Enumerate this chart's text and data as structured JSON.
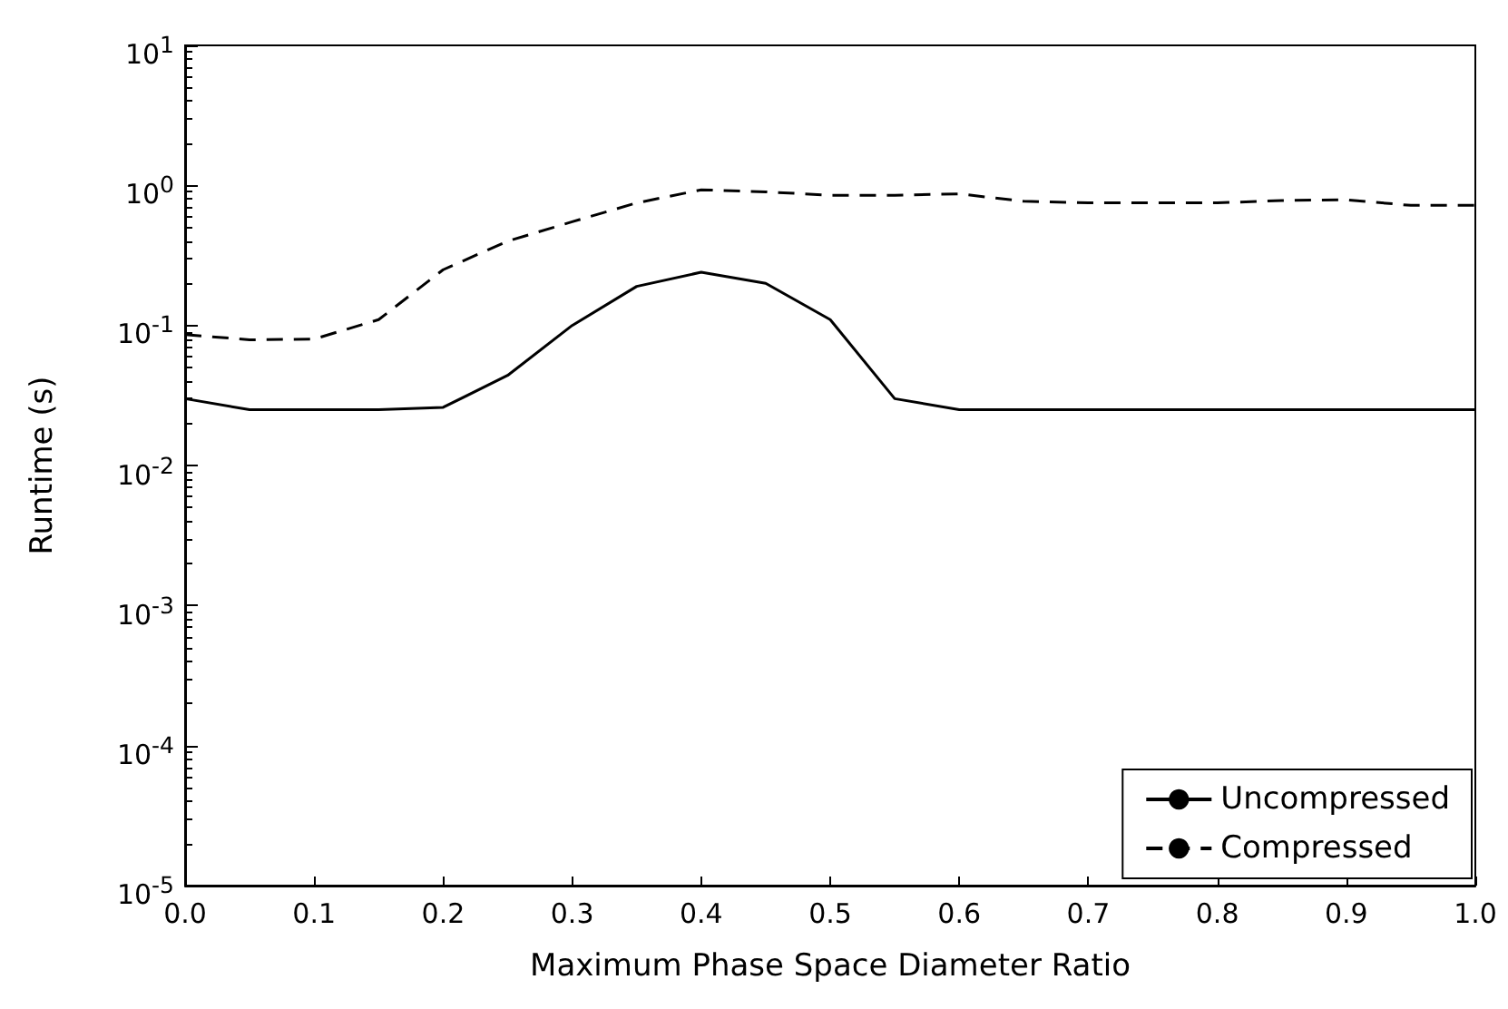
{
  "chart_data": {
    "type": "line",
    "xlabel": "Maximum Phase Space Diameter Ratio",
    "ylabel": "Runtime (s)",
    "log": "y",
    "grid": false,
    "legend": "bottom right",
    "marker": "none",
    "x": [
      0,
      0.05,
      0.1,
      0.15,
      0.2,
      0.25,
      0.3,
      0.35,
      0.4,
      0.45,
      0.5,
      0.55,
      0.6,
      0.65,
      0.7,
      0.75,
      0.8,
      0.85,
      0.9,
      0.95,
      1.0
    ],
    "series": [
      {
        "name": "Uncompressed",
        "color": "#000000",
        "line_style": "solid",
        "values": [
          0.03,
          0.025,
          0.025,
          0.025,
          0.026,
          0.044,
          0.1,
          0.19,
          0.24,
          0.2,
          0.11,
          0.03,
          0.025,
          0.025,
          0.025,
          0.025,
          0.025,
          0.025,
          0.025,
          0.025,
          0.025
        ]
      },
      {
        "name": "Compressed",
        "color": "#000000",
        "line_style": "dashed",
        "values": [
          0.086,
          0.079,
          0.08,
          0.11,
          0.25,
          0.4,
          0.55,
          0.75,
          0.93,
          0.9,
          0.85,
          0.85,
          0.87,
          0.77,
          0.75,
          0.75,
          0.75,
          0.78,
          0.79,
          0.72,
          0.72
        ]
      }
    ],
    "xlim": [
      0,
      1
    ],
    "xticks": [
      {
        "value": 0,
        "label": "0.0"
      },
      {
        "value": 0.1,
        "label": "0.1"
      },
      {
        "value": 0.2,
        "label": "0.2"
      },
      {
        "value": 0.3,
        "label": "0.3"
      },
      {
        "value": 0.4,
        "label": "0.4"
      },
      {
        "value": 0.5,
        "label": "0.5"
      },
      {
        "value": 0.6,
        "label": "0.6"
      },
      {
        "value": 0.7,
        "label": "0.7"
      },
      {
        "value": 0.8,
        "label": "0.8"
      },
      {
        "value": 0.9,
        "label": "0.9"
      },
      {
        "value": 1,
        "label": "1.0"
      }
    ],
    "ylim": [
      1e-05,
      10
    ],
    "yticks": [
      {
        "value": 1e-05,
        "label": "10$^{-5}$"
      },
      {
        "value": 0.0001,
        "label": "10$^{-4}$"
      },
      {
        "value": 0.001,
        "label": "10$^{-3}$"
      },
      {
        "value": 0.01,
        "label": "10$^{-2}$"
      },
      {
        "value": 0.1,
        "label": "10$^{-1}$"
      },
      {
        "value": 1,
        "label": "10$^{0}$"
      },
      {
        "value": 10,
        "label": "10$^{1}$"
      }
    ]
  }
}
